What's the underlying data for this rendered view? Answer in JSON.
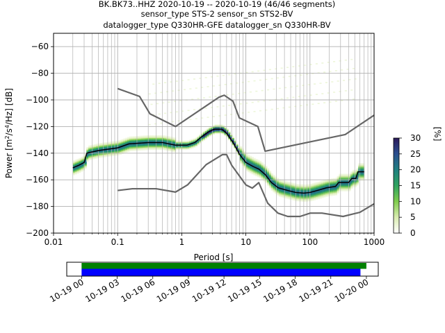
{
  "title_lines": [
    "BK.BK73..HHZ   2020-10-19 -- 2020-10-19  (46/46 segments)",
    "sensor_type STS-2 sensor_sn STS2-BV",
    "datalogger_type Q330HR-GFE datalogger_sn Q330HR-BV"
  ],
  "chart_data": {
    "type": "heatmap",
    "subtype": "probabilistic power spectral density",
    "xlabel": "Period [s]",
    "ylabel_parts": [
      "Power [m",
      "2",
      "/s",
      "4",
      "/Hz] [dB]"
    ],
    "xscale": "log",
    "xlim": [
      0.01,
      1000
    ],
    "ylim": [
      -200,
      -50
    ],
    "x_ticks": [
      0.01,
      0.1,
      1,
      10,
      100,
      1000
    ],
    "x_tick_labels": [
      "0.01",
      "0.1",
      "1",
      "10",
      "100",
      "1000"
    ],
    "y_ticks": [
      -200,
      -180,
      -160,
      -140,
      -120,
      -100,
      -80,
      -60
    ],
    "y_tick_labels": [
      "−200",
      "−180",
      "−160",
      "−140",
      "−120",
      "−100",
      "−80",
      "−60"
    ],
    "grid": true,
    "colorbar": {
      "label": "[%]",
      "range": [
        0,
        30
      ],
      "ticks": [
        0,
        5,
        10,
        15,
        20,
        25,
        30
      ],
      "tick_labels": [
        "0",
        "5",
        "10",
        "15",
        "20",
        "25",
        "30"
      ],
      "colors": [
        "#ffffff",
        "#d9ecb0",
        "#7fcc4c",
        "#2fa35f",
        "#1f7f80",
        "#2a4f8f",
        "#2b1a5a"
      ]
    },
    "noise_models": [
      {
        "id": "nhnm",
        "color": "#666666",
        "points": [
          [
            0.1,
            -91.5
          ],
          [
            0.22,
            -97.4
          ],
          [
            0.32,
            -110.5
          ],
          [
            0.8,
            -120.0
          ],
          [
            3.8,
            -98.0
          ],
          [
            4.6,
            -96.5
          ],
          [
            6.3,
            -101.0
          ],
          [
            7.9,
            -113.5
          ],
          [
            15.4,
            -120.0
          ],
          [
            20.0,
            -138.5
          ],
          [
            354.8,
            -126.0
          ],
          [
            1000,
            -111.5
          ]
        ]
      },
      {
        "id": "nlnm",
        "color": "#666666",
        "points": [
          [
            0.1,
            -168.0
          ],
          [
            0.17,
            -166.7
          ],
          [
            0.4,
            -166.7
          ],
          [
            0.8,
            -169.2
          ],
          [
            1.24,
            -163.7
          ],
          [
            2.4,
            -148.6
          ],
          [
            4.3,
            -141.1
          ],
          [
            5.0,
            -141.1
          ],
          [
            6.0,
            -149.0
          ],
          [
            10.0,
            -163.8
          ],
          [
            12.6,
            -166.2
          ],
          [
            15.9,
            -162.1
          ],
          [
            21.9,
            -177.5
          ],
          [
            31.6,
            -185.0
          ],
          [
            45.0,
            -187.5
          ],
          [
            70.0,
            -187.5
          ],
          [
            101.0,
            -185.0
          ],
          [
            154.0,
            -185.0
          ],
          [
            328.0,
            -187.5
          ],
          [
            600.0,
            -184.4
          ],
          [
            1000,
            -178.0
          ]
        ]
      }
    ],
    "mean_psd": {
      "color": "#000000",
      "points": [
        [
          0.02,
          -151.0
        ],
        [
          0.025,
          -149.0
        ],
        [
          0.03,
          -147.0
        ],
        [
          0.033,
          -140.0
        ],
        [
          0.05,
          -138.0
        ],
        [
          0.1,
          -136.0
        ],
        [
          0.15,
          -133.0
        ],
        [
          0.3,
          -132.0
        ],
        [
          0.5,
          -132.0
        ],
        [
          0.8,
          -134.0
        ],
        [
          1.2,
          -134.0
        ],
        [
          1.6,
          -132.0
        ],
        [
          2.0,
          -128.0
        ],
        [
          2.6,
          -124.0
        ],
        [
          3.2,
          -122.0
        ],
        [
          4.2,
          -122.0
        ],
        [
          5.0,
          -125.0
        ],
        [
          6.3,
          -132.0
        ],
        [
          8.0,
          -141.0
        ],
        [
          10.0,
          -147.0
        ],
        [
          13.0,
          -150.0
        ],
        [
          16.0,
          -152.0
        ],
        [
          20.0,
          -156.0
        ],
        [
          25.0,
          -162.0
        ],
        [
          32.0,
          -166.0
        ],
        [
          45.0,
          -168.0
        ],
        [
          60.0,
          -169.5
        ],
        [
          80.0,
          -170.0
        ],
        [
          100.0,
          -169.5
        ],
        [
          130.0,
          -168.0
        ],
        [
          180.0,
          -166.0
        ],
        [
          250.0,
          -165.0
        ],
        [
          280.0,
          -162.0
        ],
        [
          400.0,
          -162.0
        ],
        [
          450.0,
          -159.0
        ],
        [
          520.0,
          -159.0
        ],
        [
          560.0,
          -154.0
        ],
        [
          700.0,
          -154.0
        ]
      ]
    },
    "density_bands": [
      {
        "name": "low-period band",
        "x": [
          0.02,
          0.8
        ],
        "y_center": -138.5,
        "spread": 4,
        "level": 0.45
      },
      {
        "name": "microseism band",
        "x": [
          0.8,
          8.0
        ],
        "y_center": -127,
        "spread": 4,
        "level": 0.55
      },
      {
        "name": "secondary scatter",
        "x": [
          0.3,
          500
        ],
        "y_center": -115,
        "spread": 18,
        "level": 0.08
      },
      {
        "name": "long-period band",
        "x": [
          8.0,
          700
        ],
        "y_center": -170,
        "spread": 6,
        "level": 0.5
      }
    ],
    "time_axis": {
      "tick_labels": [
        "10-19 00",
        "10-19 03",
        "10-19 06",
        "10-19 09",
        "10-19 12",
        "10-19 15",
        "10-19 18",
        "10-19 21",
        "10-20 00"
      ],
      "tick_hours": [
        0,
        3,
        6,
        9,
        12,
        15,
        18,
        21,
        24
      ],
      "range_hours": [
        -1.25,
        25.0
      ],
      "bars": [
        {
          "id": "data-coverage",
          "color": "#008000",
          "start_hour": 0.0,
          "end_hour": 24.0
        },
        {
          "id": "psd-coverage",
          "color": "#0000ff",
          "start_hour": 0.0,
          "end_hour": 23.5
        }
      ]
    }
  }
}
